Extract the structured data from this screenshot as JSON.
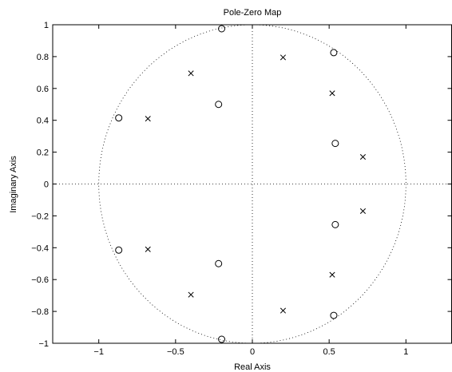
{
  "chart_data": {
    "type": "scatter",
    "title": "Pole-Zero Map",
    "xlabel": "Real Axis",
    "ylabel": "Imaginary Axis",
    "xlim": [
      -1.3,
      1.3
    ],
    "ylim": [
      -1,
      1
    ],
    "xticks": [
      -1,
      -0.5,
      0,
      0.5,
      1
    ],
    "xtick_labels": [
      "−1",
      "−0.5",
      "0",
      "0.5",
      "1"
    ],
    "yticks": [
      -1,
      -0.8,
      -0.6,
      -0.4,
      -0.2,
      0,
      0.2,
      0.4,
      0.6,
      0.8,
      1
    ],
    "ytick_labels": [
      "−1",
      "−0.8",
      "−0.6",
      "−0.4",
      "−0.2",
      "0",
      "0.2",
      "0.4",
      "0.6",
      "0.8",
      "1"
    ],
    "grid": false,
    "unit_circle": true,
    "series": [
      {
        "marker": "x",
        "x": [
          0.2,
          0.52,
          0.72,
          0.72,
          0.52,
          0.2,
          -0.4,
          -0.68,
          -0.68,
          -0.4
        ],
        "y": [
          0.795,
          0.57,
          0.17,
          -0.17,
          -0.57,
          -0.795,
          0.695,
          0.41,
          -0.41,
          -0.695
        ]
      },
      {
        "marker": "o",
        "x": [
          -0.2,
          0.53,
          0.54,
          0.54,
          0.53,
          -0.2,
          -0.87,
          -0.87,
          -0.22,
          -0.22
        ],
        "y": [
          0.975,
          0.825,
          0.255,
          -0.255,
          -0.825,
          -0.975,
          0.415,
          -0.415,
          0.5,
          -0.5
        ]
      }
    ]
  }
}
